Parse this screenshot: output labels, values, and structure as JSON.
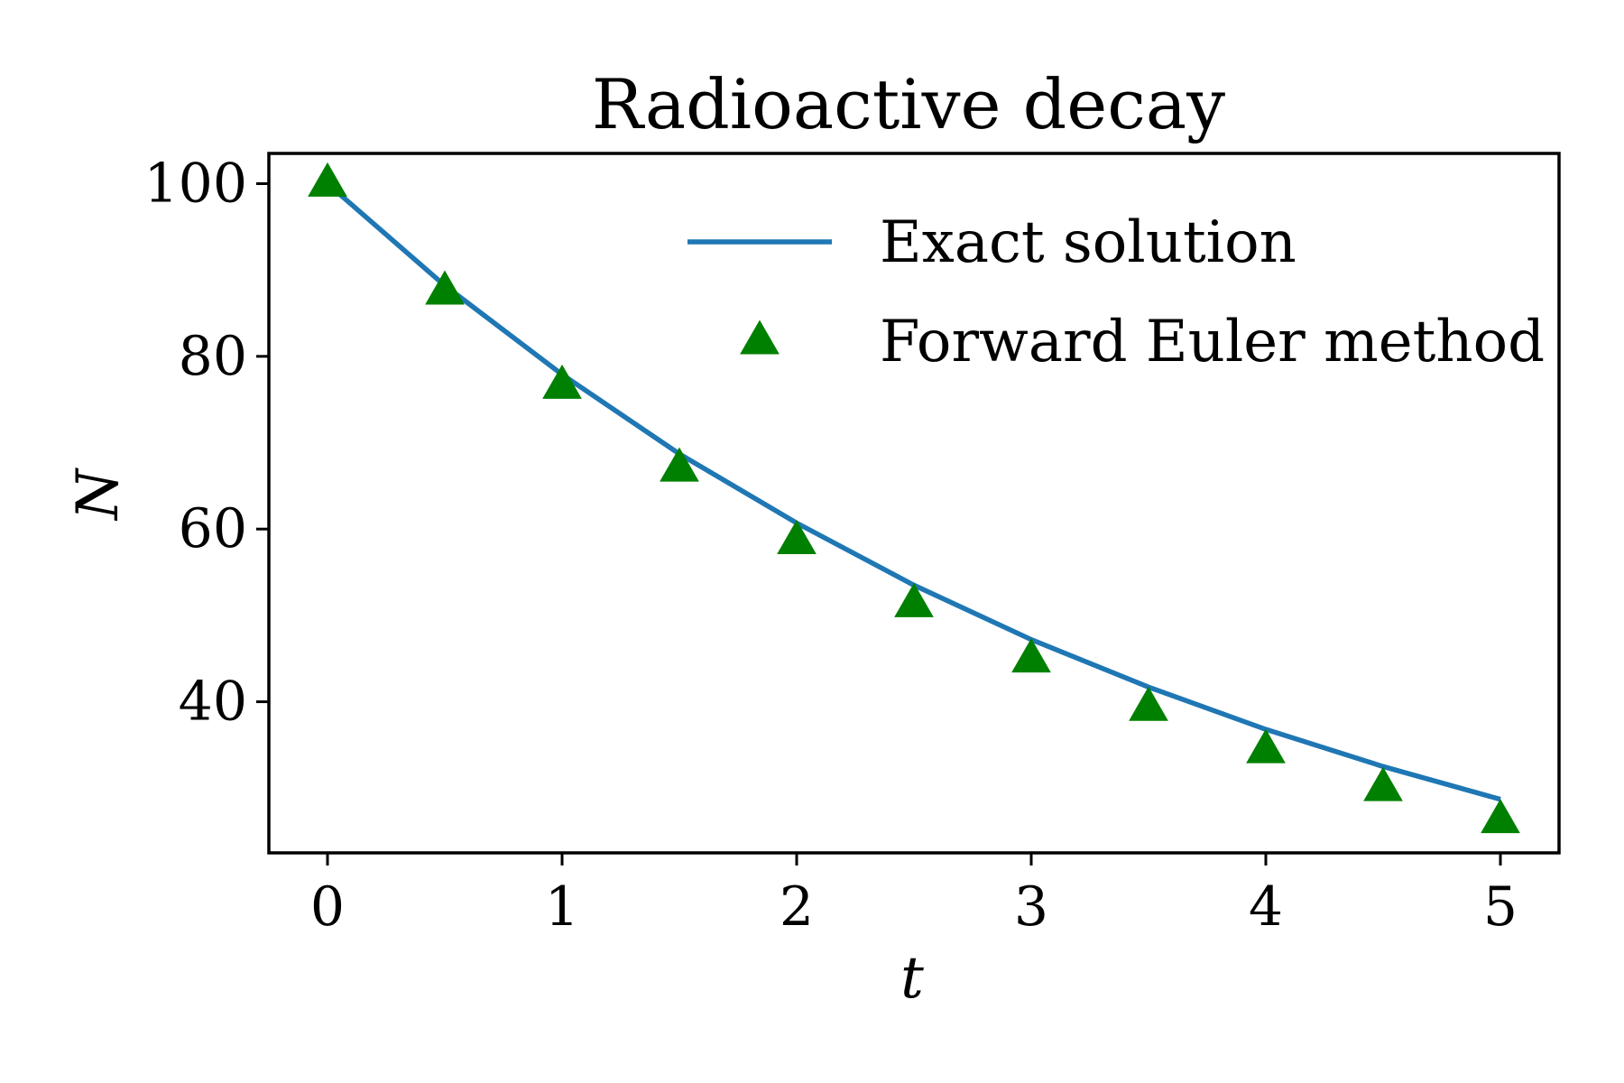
{
  "chart_data": {
    "type": "line",
    "title": "Radioactive decay",
    "xlabel": "t",
    "ylabel": "N",
    "xlim": [
      -0.25,
      5.25
    ],
    "ylim": [
      22.5,
      103.5
    ],
    "xticks": [
      0,
      1,
      2,
      3,
      4,
      5
    ],
    "yticks": [
      40,
      60,
      80,
      100
    ],
    "grid": false,
    "legend_position": "top-right",
    "series": [
      {
        "name": "Exact solution",
        "style": "line",
        "color": "#1f77b4",
        "x": [
          0,
          0.5,
          1,
          1.5,
          2,
          2.5,
          3,
          3.5,
          4,
          4.5,
          5
        ],
        "y": [
          100,
          88.2,
          77.9,
          68.7,
          60.7,
          53.5,
          47.2,
          41.7,
          36.8,
          32.5,
          28.7
        ]
      },
      {
        "name": "Forward Euler method",
        "style": "markers",
        "marker": "triangle-up",
        "color": "#008000",
        "x": [
          0,
          0.5,
          1,
          1.5,
          2,
          2.5,
          3,
          3.5,
          4,
          4.5,
          5
        ],
        "y": [
          100,
          87.5,
          76.6,
          67.0,
          58.6,
          51.3,
          44.9,
          39.3,
          34.4,
          30.0,
          26.3
        ]
      }
    ]
  }
}
